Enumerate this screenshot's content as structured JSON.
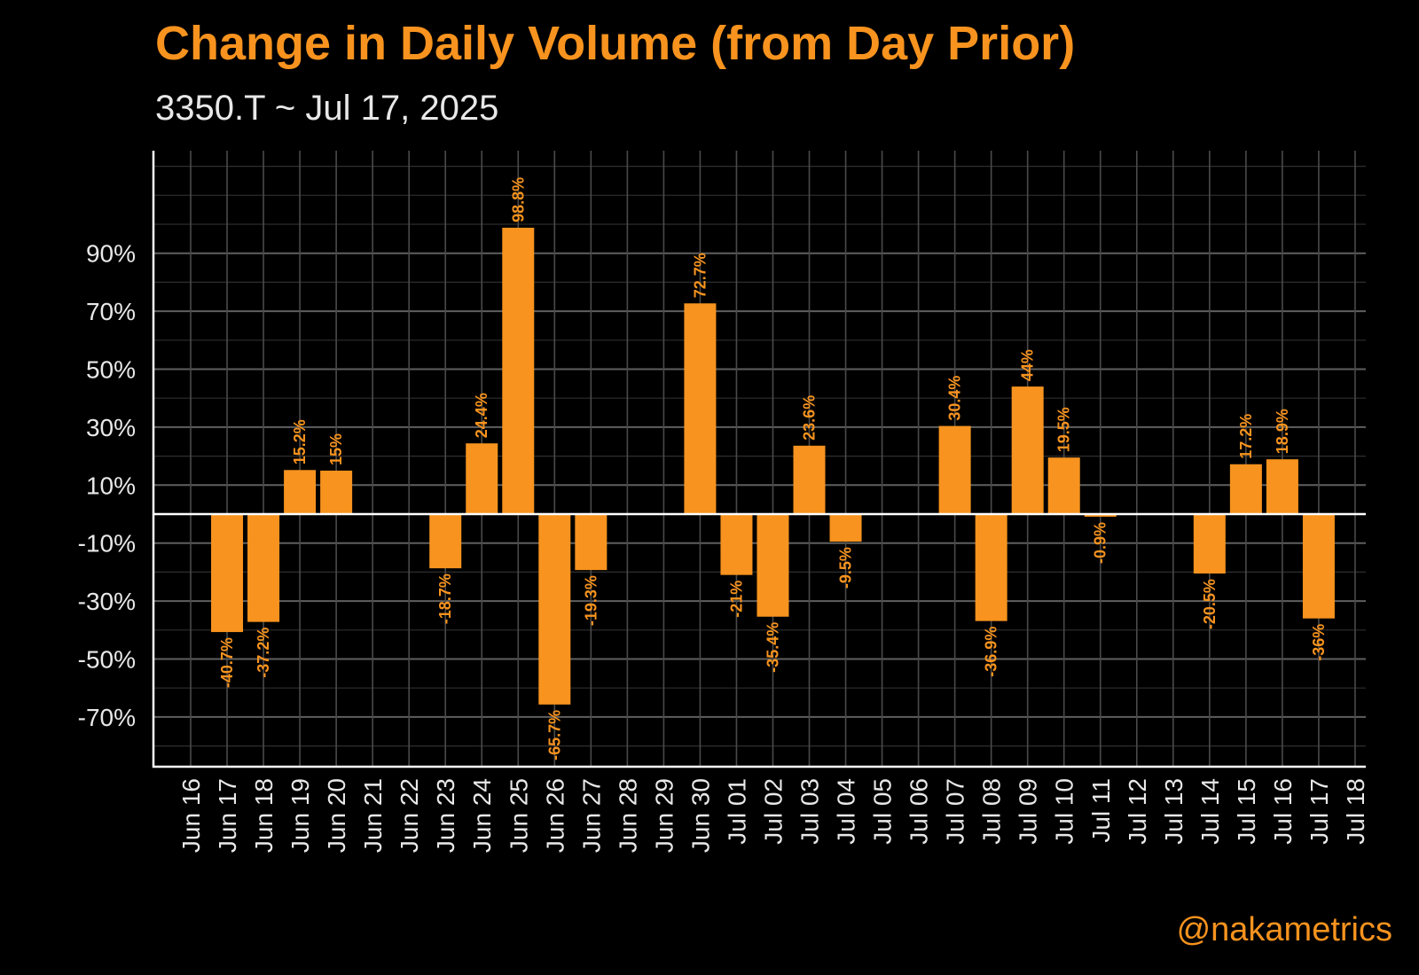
{
  "title": "Change in Daily Volume (from Day Prior)",
  "subtitle": "3350.T ~ Jul 17, 2025",
  "credit": "@nakametrics",
  "colors": {
    "bar": "#F7931E",
    "background": "#000000",
    "grid": "#5A5A5A",
    "axis": "#FFFFFF",
    "text": "#E8E8E8"
  },
  "chart_data": {
    "type": "bar",
    "title": "Change in Daily Volume (from Day Prior)",
    "subtitle": "3350.T ~ Jul 17, 2025",
    "xlabel": "",
    "ylabel": "",
    "ylim": [
      -92,
      126
    ],
    "y_ticks": [
      90,
      70,
      50,
      30,
      10,
      -10,
      -30,
      -50,
      -70
    ],
    "y_tick_labels": [
      "90%",
      "70%",
      "50%",
      "30%",
      "10%",
      "-10%",
      "-30%",
      "-50%",
      "-70%"
    ],
    "grid": true,
    "categories": [
      "Jun 16",
      "Jun 17",
      "Jun 18",
      "Jun 19",
      "Jun 20",
      "Jun 21",
      "Jun 22",
      "Jun 23",
      "Jun 24",
      "Jun 25",
      "Jun 26",
      "Jun 27",
      "Jun 28",
      "Jun 29",
      "Jun 30",
      "Jul 01",
      "Jul 02",
      "Jul 03",
      "Jul 04",
      "Jul 05",
      "Jul 06",
      "Jul 07",
      "Jul 08",
      "Jul 09",
      "Jul 10",
      "Jul 11",
      "Jul 12",
      "Jul 13",
      "Jul 14",
      "Jul 15",
      "Jul 16",
      "Jul 17",
      "Jul 18"
    ],
    "values": [
      null,
      -40.7,
      -37.2,
      15.2,
      15,
      null,
      null,
      -18.7,
      24.4,
      98.8,
      -65.7,
      -19.3,
      null,
      null,
      72.7,
      -21,
      -35.4,
      23.6,
      -9.5,
      null,
      null,
      30.4,
      -36.9,
      44,
      19.5,
      -0.9,
      null,
      null,
      -20.5,
      17.2,
      18.9,
      -36,
      null
    ],
    "data_labels": [
      null,
      "-40.7%",
      "-37.2%",
      "15.2%",
      "15%",
      null,
      null,
      "-18.7%",
      "24.4%",
      "98.8%",
      "-65.7%",
      "-19.3%",
      null,
      null,
      "72.7%",
      "-21%",
      "-35.4%",
      "23.6%",
      "-9.5%",
      null,
      null,
      "30.4%",
      "-36.9%",
      "44%",
      "19.5%",
      "-0.9%",
      null,
      null,
      "-20.5%",
      "17.2%",
      "18.9%",
      "-36%",
      null
    ]
  }
}
